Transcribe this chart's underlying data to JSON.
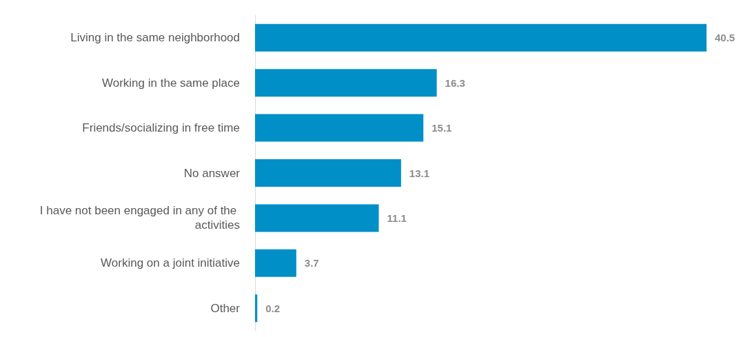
{
  "chart_data": {
    "type": "bar",
    "orientation": "horizontal",
    "categories": [
      "Living in the same neighborhood",
      "Working in the same place",
      "Friends/socializing in free time",
      "No answer",
      "I have not been engaged in any of the activities",
      "Working on a joint initiative",
      "Other"
    ],
    "values": [
      40.5,
      16.3,
      15.1,
      13.1,
      11.1,
      3.7,
      0.2
    ],
    "color": "#008fc7",
    "data_labels": true
  }
}
